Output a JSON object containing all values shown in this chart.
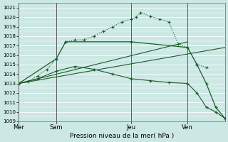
{
  "bg_color": "#cce8e4",
  "grid_color": "#ffffff",
  "line_color": "#1a5c2a",
  "xlabel": "Pression niveau de la mer( hPa )",
  "ylim": [
    1009,
    1021.5
  ],
  "ytick_min": 1009,
  "ytick_max": 1021,
  "xtick_labels": [
    "Mer",
    "Sam",
    "Jeu",
    "Ven"
  ],
  "xtick_positions": [
    0,
    4,
    12,
    18
  ],
  "vline_positions": [
    0,
    4,
    12,
    18
  ],
  "xlim": [
    0,
    22
  ],
  "dotted_line": {
    "x": [
      0,
      1,
      2,
      3,
      4,
      5,
      6,
      7,
      8,
      9,
      10,
      11,
      12,
      12.5,
      13,
      14,
      15,
      16,
      17,
      18,
      19,
      20
    ],
    "y": [
      1013.0,
      1013.2,
      1013.8,
      1014.5,
      1015.6,
      1017.4,
      1017.6,
      1017.6,
      1018.0,
      1018.5,
      1019.0,
      1019.5,
      1019.8,
      1020.0,
      1020.5,
      1020.1,
      1019.8,
      1019.5,
      1017.2,
      1016.8,
      1015.0,
      1014.7
    ]
  },
  "solid_peak_line": {
    "x": [
      0,
      4,
      5,
      12,
      18,
      19,
      20,
      21,
      22
    ],
    "y": [
      1013.0,
      1015.6,
      1017.4,
      1017.4,
      1016.8,
      1015.0,
      1013.0,
      1010.5,
      1009.3
    ]
  },
  "trend_line1": {
    "x": [
      0,
      22
    ],
    "y": [
      1013.0,
      1016.8
    ]
  },
  "trend_line2": {
    "x": [
      0,
      18
    ],
    "y": [
      1013.0,
      1017.4
    ]
  },
  "decline_line": {
    "x": [
      0,
      2,
      4,
      6,
      8,
      10,
      12,
      14,
      16,
      18,
      19,
      20,
      21,
      22
    ],
    "y": [
      1013.0,
      1013.5,
      1014.3,
      1014.8,
      1014.5,
      1014.0,
      1013.5,
      1013.3,
      1013.1,
      1013.0,
      1012.0,
      1010.5,
      1010.0,
      1009.3
    ]
  }
}
